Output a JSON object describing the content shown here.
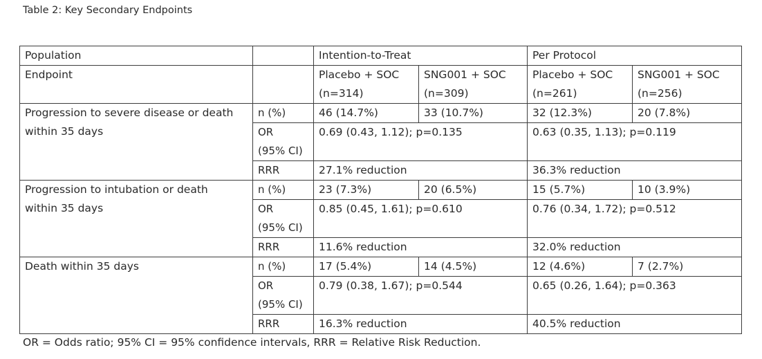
{
  "caption": "Table 2: Key Secondary Endpoints",
  "header": {
    "population_label": "Population",
    "itt_label": "Intention-to-Treat",
    "pp_label": "Per Protocol",
    "endpoint_label": "Endpoint",
    "itt_placebo": "Placebo + SOC",
    "itt_placebo_n": "(n=314)",
    "itt_sng": "SNG001 + SOC",
    "itt_sng_n": "(n=309)",
    "pp_placebo": "Placebo + SOC",
    "pp_placebo_n": "(n=261)",
    "pp_sng": "SNG001 + SOC",
    "pp_sng_n": "(n=256)"
  },
  "groups": [
    {
      "endpoint_line1": "Progression to severe disease or death",
      "endpoint_line2": "within 35 days",
      "n_label": "n (%)",
      "itt_placebo": "46 (14.7%)",
      "itt_sng": "33 (10.7%)",
      "pp_placebo": "32 (12.3%)",
      "pp_sng": "20 (7.8%)",
      "or_label_1": "OR",
      "or_label_2": "(95% CI)",
      "itt_or": "0.69 (0.43, 1.12); p=0.135",
      "pp_or": "0.63 (0.35, 1.13); p=0.119",
      "rrr_label": "RRR",
      "itt_rrr": "27.1% reduction",
      "pp_rrr": "36.3% reduction"
    },
    {
      "endpoint_line1": "Progression to intubation or death",
      "endpoint_line2": "within 35 days",
      "n_label": "n (%)",
      "itt_placebo": "23 (7.3%)",
      "itt_sng": "20 (6.5%)",
      "pp_placebo": "15 (5.7%)",
      "pp_sng": "10 (3.9%)",
      "or_label_1": "OR",
      "or_label_2": "(95% CI)",
      "itt_or": "0.85 (0.45, 1.61); p=0.610",
      "pp_or": "0.76 (0.34, 1.72); p=0.512",
      "rrr_label": "RRR",
      "itt_rrr": "11.6% reduction",
      "pp_rrr": "32.0% reduction"
    },
    {
      "endpoint_line1": "Death within 35 days",
      "endpoint_line2": "",
      "n_label": "n (%)",
      "itt_placebo": "17 (5.4%)",
      "itt_sng": "14 (4.5%)",
      "pp_placebo": "12 (4.6%)",
      "pp_sng": "7 (2.7%)",
      "or_label_1": "OR",
      "or_label_2": "(95% CI)",
      "itt_or": "0.79 (0.38, 1.67); p=0.544",
      "pp_or": "0.65 (0.26, 1.64); p=0.363",
      "rrr_label": "RRR",
      "itt_rrr": "16.3% reduction",
      "pp_rrr": "40.5% reduction"
    }
  ],
  "footnote": "OR = Odds ratio; 95% CI = 95% confidence intervals, RRR = Relative Risk Reduction."
}
